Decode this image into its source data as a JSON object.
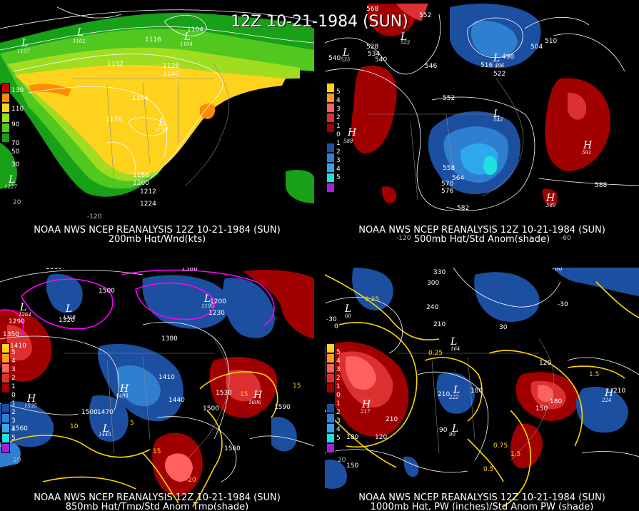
{
  "main_title": "12Z 10-21-1984 (SUN)",
  "panels": [
    {
      "caption_top": "NOAA NWS NCEP REANALYSIS 12Z 10-21-1984 (SUN)",
      "caption_bottom": "200mb Hgt/Wnd(kts)",
      "legend": [
        "130",
        "110",
        "90",
        "70",
        "50",
        "30"
      ],
      "legend_colors": [
        "#c80000",
        "#ff8c00",
        "#ffd21e",
        "#a0dc20",
        "#50c820",
        "#18a018"
      ],
      "contour_labels": [
        "1104",
        "1116",
        "1152",
        "1128",
        "1140",
        "1164",
        "1176",
        "1188",
        "1200",
        "1212",
        "1224"
      ],
      "symbols": [
        {
          "t": "L",
          "v": "1157"
        },
        {
          "t": "L",
          "v": "1102"
        },
        {
          "t": "L",
          "v": "1104"
        },
        {
          "t": "L",
          "v": "1159"
        },
        {
          "t": "L",
          "v": "1227"
        }
      ],
      "axis": [
        "-120",
        "20"
      ]
    },
    {
      "caption_top": "NOAA NWS NCEP REANALYSIS 12Z 10-21-1984 (SUN)",
      "caption_bottom": "500mb Hgt/Std Anom(shade)",
      "legend": [
        "5",
        "4",
        "3",
        "2",
        "1",
        "0",
        "1",
        "2",
        "3",
        "4",
        "5"
      ],
      "legend_colors": [
        "#ffd21e",
        "#ff9a1e",
        "#ff6060",
        "#dd3030",
        "#a00000",
        "#000000",
        "#1c4fa0",
        "#2f7fd0",
        "#30a8f0",
        "#20e0e0",
        "#a020e0"
      ],
      "contour_labels": [
        "568",
        "552",
        "528",
        "534",
        "540",
        "546",
        "504",
        "510",
        "516",
        "522",
        "498",
        "552",
        "558",
        "564",
        "570",
        "576",
        "582",
        "588"
      ],
      "symbols": [
        {
          "t": "L",
          "v": "535"
        },
        {
          "t": "L",
          "v": "522"
        },
        {
          "t": "L",
          "v": "496"
        },
        {
          "t": "L",
          "v": "542"
        },
        {
          "t": "H",
          "v": "588"
        },
        {
          "t": "H",
          "v": "591"
        },
        {
          "t": "H",
          "v": "589"
        }
      ],
      "axis": [
        "-120",
        "-60"
      ]
    },
    {
      "caption_top": "NOAA NWS NCEP REANALYSIS 12Z 10-21-1984 (SUN)",
      "caption_bottom": "850mb Hgt/Tmp/Std Anom Tmp(shade)",
      "legend": [
        "5",
        "4",
        "3",
        "2",
        "1",
        "0",
        "1",
        "2",
        "3",
        "4",
        "5"
      ],
      "legend_colors": [
        "#ffd21e",
        "#ff9a1e",
        "#ff6060",
        "#dd3030",
        "#a00000",
        "#000000",
        "#1c4fa0",
        "#2f7fd0",
        "#30a8f0",
        "#20e0e0",
        "#a020e0"
      ],
      "contour_labels": [
        "1530",
        "1380",
        "1500",
        "1320",
        "1290",
        "1350",
        "1410",
        "1200",
        "1230",
        "1380",
        "1410",
        "1440",
        "1470",
        "1500",
        "1530",
        "1560",
        "1590",
        "1560",
        "15",
        "10",
        "5",
        "15",
        "-20"
      ],
      "symbols": [
        {
          "t": "L",
          "v": "1318"
        },
        {
          "t": "L",
          "v": "1264"
        },
        {
          "t": "L",
          "v": "1245"
        },
        {
          "t": "H",
          "v": "1493"
        },
        {
          "t": "H",
          "v": "1538"
        },
        {
          "t": "H",
          "v": "1606"
        },
        {
          "t": "L",
          "v": "1195"
        }
      ],
      "axis": [
        "20"
      ]
    },
    {
      "caption_top": "NOAA NWS NCEP REANALYSIS 12Z 10-21-1984 (SUN)",
      "caption_bottom": "1000mb Hgt, PW (inches)/Std Anom PW (shade)",
      "legend": [
        "5",
        "4",
        "3",
        "2",
        "1",
        "0",
        "1",
        "2",
        "3",
        "4",
        "5"
      ],
      "legend_colors": [
        "#ffd21e",
        "#ff9a1e",
        "#ff6060",
        "#dd3030",
        "#a00000",
        "#000000",
        "#1c4fa0",
        "#2f7fd0",
        "#30a8f0",
        "#20e0e0",
        "#a020e0"
      ],
      "contour_labels": [
        "330",
        "150",
        "-60",
        "-90",
        "300",
        "-30",
        "0",
        "240",
        "210",
        "30",
        "0.25",
        "-30",
        "120",
        "210",
        "180",
        "150",
        "180",
        "90",
        "120",
        "150",
        "210",
        "0.25",
        "1.5",
        "1.5",
        "0.5",
        "0.75"
      ],
      "symbols": [
        {
          "t": "L",
          "v": "60"
        },
        {
          "t": "L",
          "v": "164"
        },
        {
          "t": "L",
          "v": "90"
        },
        {
          "t": "L",
          "v": "222"
        },
        {
          "t": "H",
          "v": "224"
        },
        {
          "t": "H",
          "v": "217"
        }
      ],
      "axis": [
        "20"
      ]
    }
  ]
}
